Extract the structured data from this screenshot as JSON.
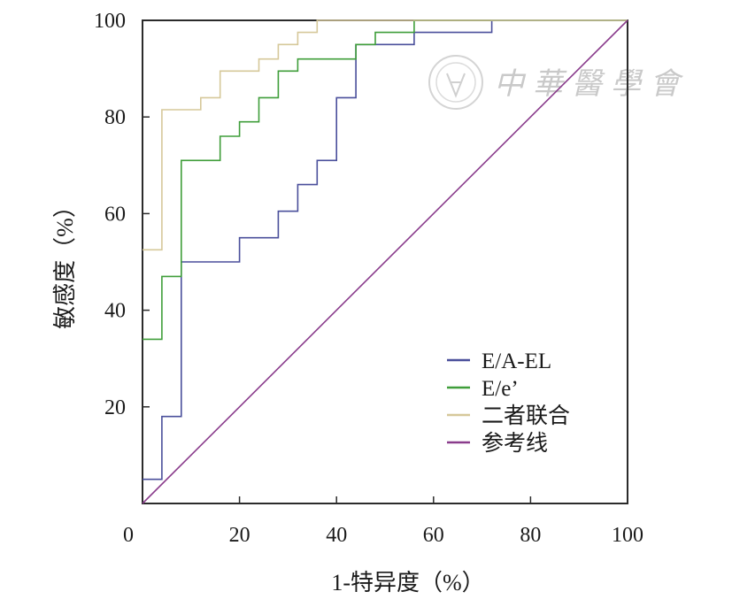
{
  "chart_data": {
    "type": "line",
    "title": "",
    "xlabel": "1-特异度（%）",
    "ylabel": "敏感度（%）",
    "xlim": [
      0,
      100
    ],
    "ylim": [
      0,
      100
    ],
    "x_ticks": [
      "0",
      "20",
      "40",
      "60",
      "80",
      "100"
    ],
    "y_ticks": [
      "20",
      "40",
      "60",
      "80",
      "100"
    ],
    "grid": false,
    "legend_position": "lower-right",
    "series": [
      {
        "name": "E/A-EL",
        "color": "#4a4f9b",
        "step": true,
        "points": [
          [
            0,
            5
          ],
          [
            4,
            5
          ],
          [
            4,
            18
          ],
          [
            8,
            18
          ],
          [
            8,
            50
          ],
          [
            20,
            50
          ],
          [
            20,
            55
          ],
          [
            28,
            55
          ],
          [
            28,
            60.5
          ],
          [
            32,
            60.5
          ],
          [
            32,
            66
          ],
          [
            36,
            66
          ],
          [
            36,
            71
          ],
          [
            40,
            71
          ],
          [
            40,
            84
          ],
          [
            44,
            84
          ],
          [
            44,
            95
          ],
          [
            56,
            95
          ],
          [
            56,
            97.5
          ],
          [
            72,
            97.5
          ],
          [
            72,
            100
          ],
          [
            100,
            100
          ]
        ]
      },
      {
        "name": "E/e’",
        "color": "#3f9e3a",
        "step": true,
        "points": [
          [
            0,
            34
          ],
          [
            4,
            34
          ],
          [
            4,
            47
          ],
          [
            8,
            47
          ],
          [
            8,
            71
          ],
          [
            16,
            71
          ],
          [
            16,
            76
          ],
          [
            20,
            76
          ],
          [
            20,
            79
          ],
          [
            24,
            79
          ],
          [
            24,
            84
          ],
          [
            28,
            84
          ],
          [
            28,
            89.5
          ],
          [
            32,
            89.5
          ],
          [
            32,
            92
          ],
          [
            44,
            92
          ],
          [
            44,
            95
          ],
          [
            48,
            95
          ],
          [
            48,
            97.5
          ],
          [
            56,
            97.5
          ],
          [
            56,
            100
          ],
          [
            100,
            100
          ]
        ]
      },
      {
        "name": "二者联合",
        "color": "#d6c89a",
        "step": true,
        "points": [
          [
            0,
            52.5
          ],
          [
            4,
            52.5
          ],
          [
            4,
            81.5
          ],
          [
            12,
            81.5
          ],
          [
            12,
            84
          ],
          [
            16,
            84
          ],
          [
            16,
            89.5
          ],
          [
            24,
            89.5
          ],
          [
            24,
            92
          ],
          [
            28,
            92
          ],
          [
            28,
            95
          ],
          [
            32,
            95
          ],
          [
            32,
            97.5
          ],
          [
            36,
            97.5
          ],
          [
            36,
            100
          ],
          [
            100,
            100
          ]
        ]
      },
      {
        "name": "参考线",
        "color": "#8a3c8c",
        "step": false,
        "points": [
          [
            0,
            0
          ],
          [
            100,
            100
          ]
        ]
      }
    ]
  },
  "watermark": {
    "text": "中華醫學會",
    "color": "#c9c9c9"
  }
}
